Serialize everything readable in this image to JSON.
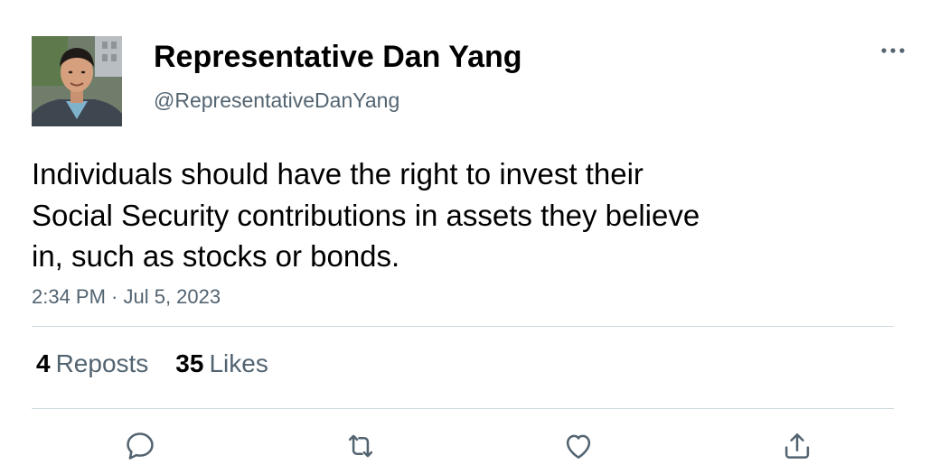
{
  "profile": {
    "display_name": "Representative Dan Yang",
    "handle": "@RepresentativeDanYang",
    "avatar_icon": "user-avatar-photo"
  },
  "tweet": {
    "lines": [
      "Individuals should have the right to invest their",
      "Social Security contributions in assets they believe",
      "in, such as stocks or bonds."
    ],
    "timestamp": "2:34 PM · Jul 5, 2023"
  },
  "stats": {
    "reposts_count": "4",
    "reposts_label": "Reposts",
    "likes_count": "35",
    "likes_label": "Likes"
  },
  "actions": [
    {
      "name": "reply",
      "icon": "speech-bubble-icon"
    },
    {
      "name": "repost",
      "icon": "repost-arrows-icon"
    },
    {
      "name": "like",
      "icon": "heart-icon"
    },
    {
      "name": "share",
      "icon": "share-upload-icon"
    }
  ],
  "colors": {
    "text_primary": "#0f1419",
    "text_secondary": "#536471",
    "divider": "#cfd9de"
  }
}
